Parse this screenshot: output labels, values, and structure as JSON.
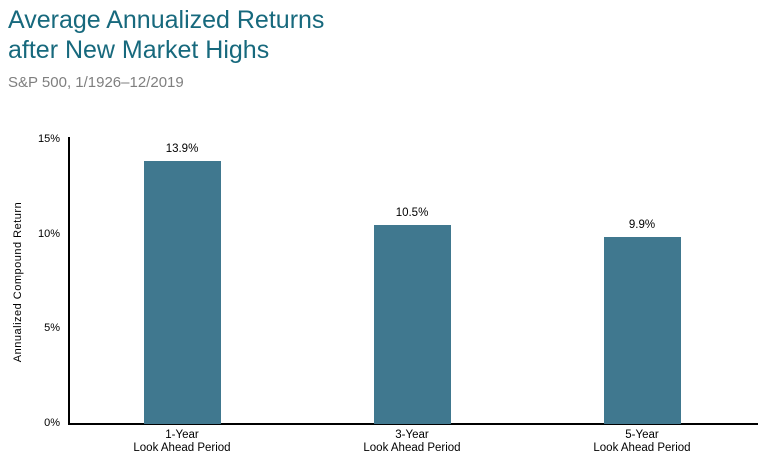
{
  "header": {
    "title": "Average Annualized Returns\nafter New Market Highs",
    "subtitle": "S&P 500, 1/1926–12/2019",
    "title_color": "#17697d",
    "subtitle_color": "#7f7f7f"
  },
  "chart_data": {
    "type": "bar",
    "title": "Average Annualized Returns after New Market Highs",
    "subtitle": "S&P 500, 1/1926–12/2019",
    "categories": [
      "1-Year",
      "3-Year",
      "5-Year"
    ],
    "category_caption": "Look Ahead Period",
    "values": [
      13.9,
      10.5,
      9.9
    ],
    "value_labels": [
      "13.9%",
      "10.5%",
      "9.9%"
    ],
    "xlabel": "",
    "ylabel": "Annualized Compound Return",
    "ylim": [
      0,
      15
    ],
    "yticks": [
      0,
      5,
      10,
      15
    ],
    "ytick_labels": [
      "0%",
      "5%",
      "10%",
      "15%"
    ],
    "grid": false,
    "legend": "none",
    "bar_color": "#40788f",
    "axis_color": "#000000",
    "label_color": "#000000"
  }
}
